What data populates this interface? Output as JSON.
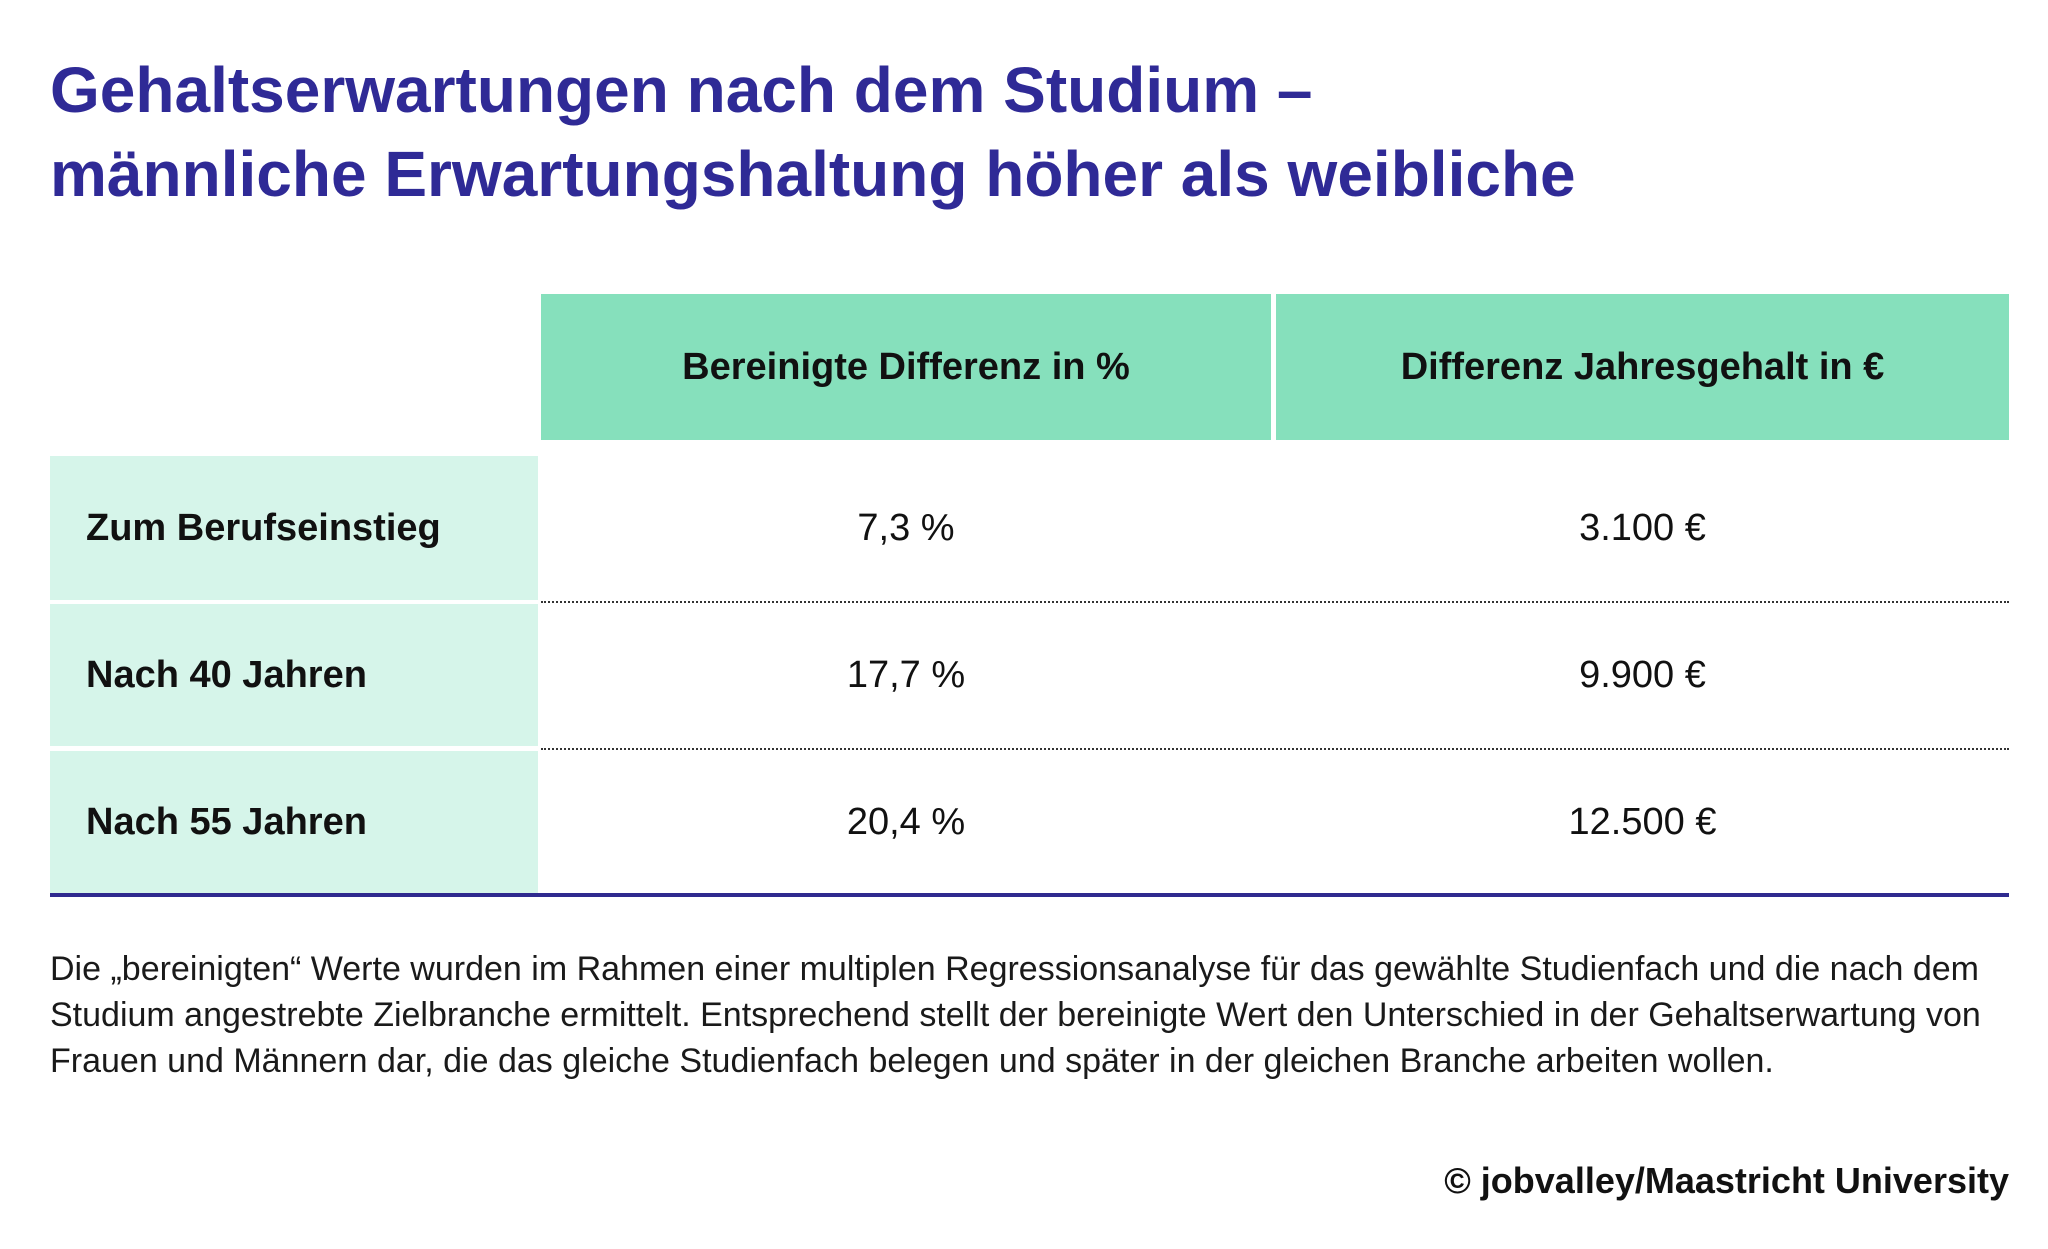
{
  "title": {
    "line1": "Gehaltserwartungen nach dem Studium –",
    "line2": "männliche Erwartungshaltung höher als weibliche"
  },
  "table": {
    "headers": [
      "Bereinigte Differenz in %",
      "Differenz Jahresgehalt in €"
    ],
    "rows": [
      {
        "label": "Zum Berufseinstieg",
        "percent": "7,3 %",
        "euro": "3.100 €"
      },
      {
        "label": "Nach 40 Jahren",
        "percent": "17,7 %",
        "euro": "9.900 €"
      },
      {
        "label": "Nach 55 Jahren",
        "percent": "20,4 %",
        "euro": "12.500 €"
      }
    ]
  },
  "footnote": "Die „bereinigten“ Werte wurden im Rahmen einer multiplen Regressionsanalyse für das gewählte Studienfach und die nach dem Studium angestrebte Zielbranche ermittelt. Entsprechend stellt der bereinigte Wert den Unterschied in der Gehaltserwartung von Frauen und Männern dar, die das gleiche Studienfach belegen und später in der gleichen Branche arbeiten wollen.",
  "credit": "© jobvalley/Maastricht University",
  "colors": {
    "title": "#2f2a96",
    "header_bg": "#86e0bc",
    "label_bg": "#d6f5ea",
    "rule": "#2f2a8f"
  }
}
